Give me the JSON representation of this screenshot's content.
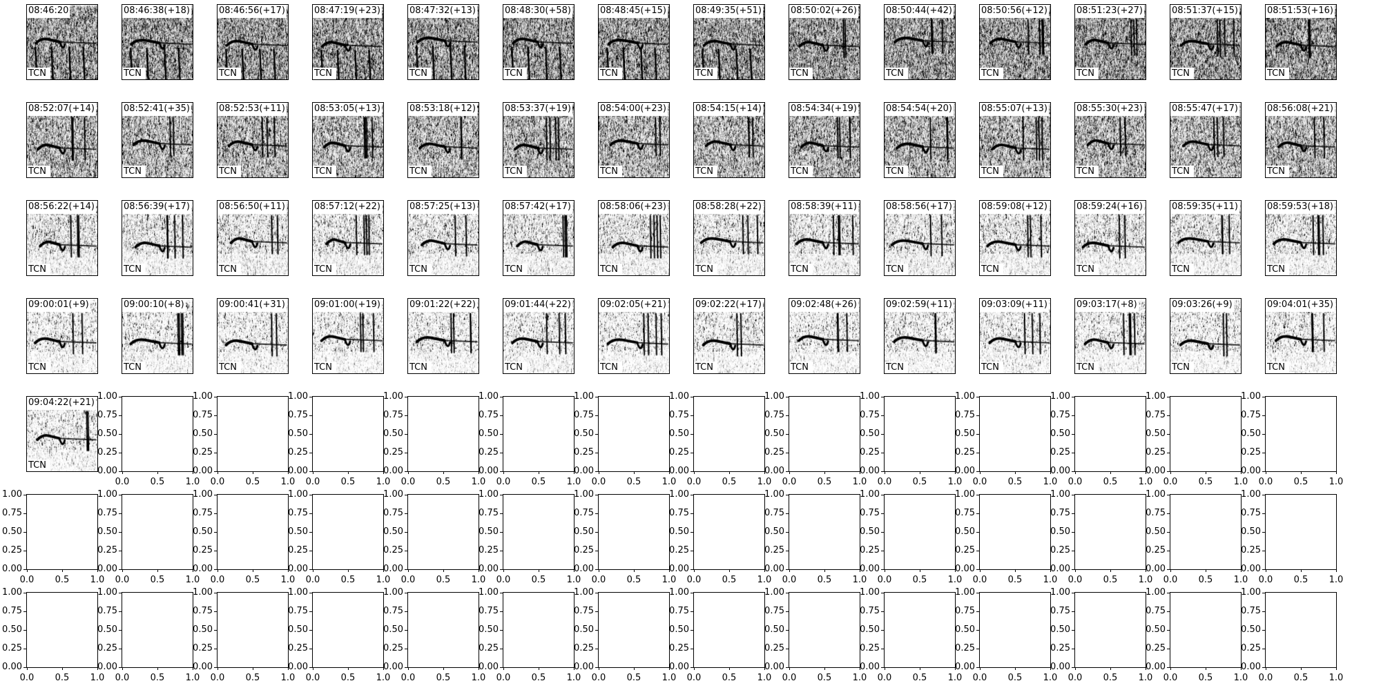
{
  "chart_data": {
    "type": "heatmap",
    "description_kind": "spectrogram grid",
    "grid": {
      "rows": 7,
      "cols": 14
    },
    "colormap": "gray_r",
    "panels": [
      {
        "time": "08:46:20",
        "label": "TCN"
      },
      {
        "time": "08:46:38(+18)",
        "label": "TCN"
      },
      {
        "time": "08:46:56(+17)",
        "label": "TCN"
      },
      {
        "time": "08:47:19(+23)",
        "label": "TCN"
      },
      {
        "time": "08:47:32(+13)",
        "label": "TCN"
      },
      {
        "time": "08:48:30(+58)",
        "label": "TCN"
      },
      {
        "time": "08:48:45(+15)",
        "label": "TCN"
      },
      {
        "time": "08:49:35(+51)",
        "label": "TCN"
      },
      {
        "time": "08:50:02(+26)",
        "label": "TCN"
      },
      {
        "time": "08:50:44(+42)",
        "label": "TCN"
      },
      {
        "time": "08:50:56(+12)",
        "label": "TCN"
      },
      {
        "time": "08:51:23(+27)",
        "label": "TCN"
      },
      {
        "time": "08:51:37(+15)",
        "label": "TCN"
      },
      {
        "time": "08:51:53(+16)",
        "label": "TCN"
      },
      {
        "time": "08:52:07(+14)",
        "label": "TCN"
      },
      {
        "time": "08:52:41(+35)",
        "label": "TCN"
      },
      {
        "time": "08:52:53(+11)",
        "label": "TCN"
      },
      {
        "time": "08:53:05(+13)",
        "label": "TCN"
      },
      {
        "time": "08:53:18(+12)",
        "label": "TCN"
      },
      {
        "time": "08:53:37(+19)",
        "label": "TCN"
      },
      {
        "time": "08:54:00(+23)",
        "label": "TCN"
      },
      {
        "time": "08:54:15(+14)",
        "label": "TCN"
      },
      {
        "time": "08:54:34(+19)",
        "label": "TCN"
      },
      {
        "time": "08:54:54(+20)",
        "label": "TCN"
      },
      {
        "time": "08:55:07(+13)",
        "label": "TCN"
      },
      {
        "time": "08:55:30(+23)",
        "label": "TCN"
      },
      {
        "time": "08:55:47(+17)",
        "label": "TCN"
      },
      {
        "time": "08:56:08(+21)",
        "label": "TCN"
      },
      {
        "time": "08:56:22(+14)",
        "label": "TCN"
      },
      {
        "time": "08:56:39(+17)",
        "label": "TCN"
      },
      {
        "time": "08:56:50(+11)",
        "label": "TCN"
      },
      {
        "time": "08:57:12(+22)",
        "label": "TCN"
      },
      {
        "time": "08:57:25(+13)",
        "label": "TCN"
      },
      {
        "time": "08:57:42(+17)",
        "label": "TCN"
      },
      {
        "time": "08:58:06(+23)",
        "label": "TCN"
      },
      {
        "time": "08:58:28(+22)",
        "label": "TCN"
      },
      {
        "time": "08:58:39(+11)",
        "label": "TCN"
      },
      {
        "time": "08:58:56(+17)",
        "label": "TCN"
      },
      {
        "time": "08:59:08(+12)",
        "label": "TCN"
      },
      {
        "time": "08:59:24(+16)",
        "label": "TCN"
      },
      {
        "time": "08:59:35(+11)",
        "label": "TCN"
      },
      {
        "time": "08:59:53(+18)",
        "label": "TCN"
      },
      {
        "time": "09:00:01(+9)",
        "label": "TCN"
      },
      {
        "time": "09:00:10(+8)",
        "label": "TCN"
      },
      {
        "time": "09:00:41(+31)",
        "label": "TCN"
      },
      {
        "time": "09:01:00(+19)",
        "label": "TCN"
      },
      {
        "time": "09:01:22(+22)",
        "label": "TCN"
      },
      {
        "time": "09:01:44(+22)",
        "label": "TCN"
      },
      {
        "time": "09:02:05(+21)",
        "label": "TCN"
      },
      {
        "time": "09:02:22(+17)",
        "label": "TCN"
      },
      {
        "time": "09:02:48(+26)",
        "label": "TCN"
      },
      {
        "time": "09:02:59(+11)",
        "label": "TCN"
      },
      {
        "time": "09:03:09(+11)",
        "label": "TCN"
      },
      {
        "time": "09:03:17(+8)",
        "label": "TCN"
      },
      {
        "time": "09:03:26(+9)",
        "label": "TCN"
      },
      {
        "time": "09:04:01(+35)",
        "label": "TCN"
      },
      {
        "time": "09:04:22(+21)",
        "label": "TCN"
      }
    ],
    "empty_axes": {
      "count": 41,
      "xlim": [
        0,
        1
      ],
      "ylim": [
        0,
        1
      ],
      "xtick_labels": [
        "0.0",
        "0.5",
        "1.0"
      ],
      "ytick_labels": [
        "0.00",
        "0.25",
        "0.50",
        "0.75",
        "1.00"
      ]
    }
  }
}
